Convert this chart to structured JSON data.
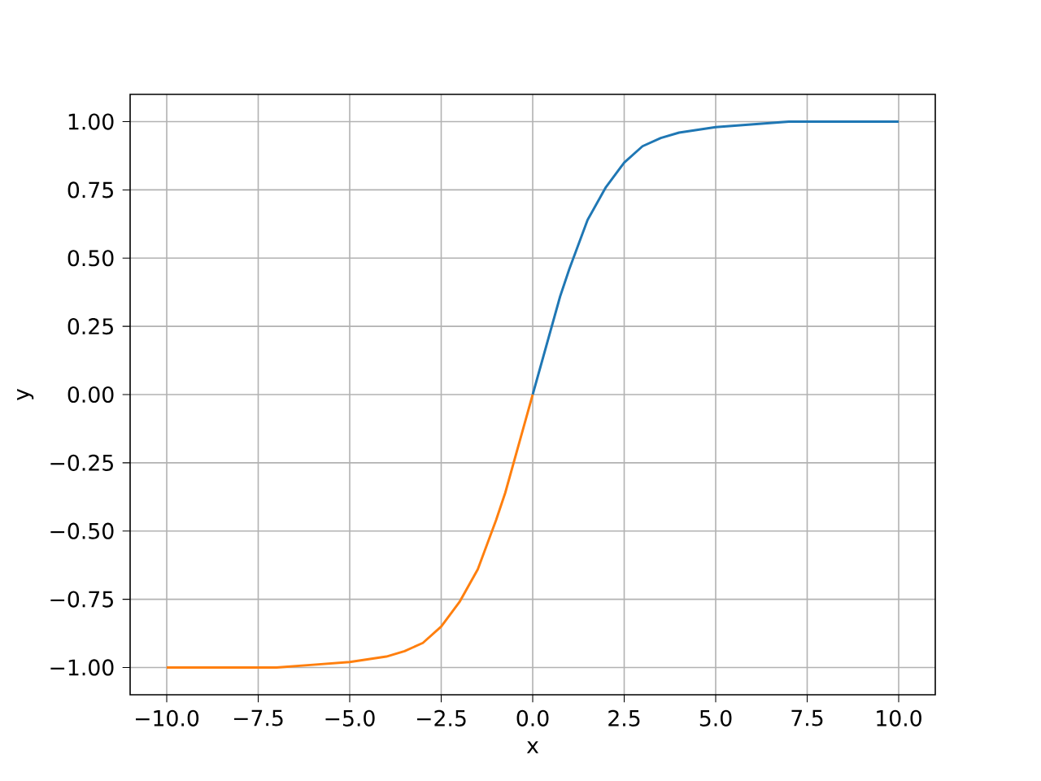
{
  "chart_data": {
    "type": "line",
    "xlabel": "x",
    "ylabel": "y",
    "series": [
      {
        "color": "#1f77b4",
        "x": [
          0,
          0.25,
          0.5,
          0.75,
          1,
          1.5,
          2,
          2.5,
          3,
          3.5,
          4,
          5,
          6,
          7,
          8,
          9,
          10
        ],
        "values": [
          0,
          0.12,
          0.24,
          0.36,
          0.46,
          0.64,
          0.76,
          0.85,
          0.91,
          0.94,
          0.96,
          0.98,
          0.99,
          1.0,
          1.0,
          1.0,
          1.0
        ]
      },
      {
        "color": "#ff7f0e",
        "x": [
          -10,
          -9,
          -8,
          -7,
          -6,
          -5,
          -4,
          -3.5,
          -3,
          -2.5,
          -2,
          -1.5,
          -1,
          -0.75,
          -0.5,
          -0.25,
          0
        ],
        "values": [
          -1.0,
          -1.0,
          -1.0,
          -1.0,
          -0.99,
          -0.98,
          -0.96,
          -0.94,
          -0.91,
          -0.85,
          -0.76,
          -0.64,
          -0.46,
          -0.36,
          -0.24,
          -0.12,
          0
        ]
      }
    ],
    "xlim": [
      -11,
      11
    ],
    "ylim": [
      -1.1,
      1.1
    ],
    "xticks": [
      {
        "value": -10,
        "label": "−10.0"
      },
      {
        "value": -7.5,
        "label": "−7.5"
      },
      {
        "value": -5,
        "label": "−5.0"
      },
      {
        "value": -2.5,
        "label": "−2.5"
      },
      {
        "value": 0,
        "label": "0.0"
      },
      {
        "value": 2.5,
        "label": "2.5"
      },
      {
        "value": 5,
        "label": "5.0"
      },
      {
        "value": 7.5,
        "label": "7.5"
      },
      {
        "value": 10,
        "label": "10.0"
      }
    ],
    "yticks": [
      {
        "value": -1,
        "label": "−1.00"
      },
      {
        "value": -0.75,
        "label": "−0.75"
      },
      {
        "value": -0.5,
        "label": "−0.50"
      },
      {
        "value": -0.25,
        "label": "−0.25"
      },
      {
        "value": 0,
        "label": "0.00"
      },
      {
        "value": 0.25,
        "label": "0.25"
      },
      {
        "value": 0.5,
        "label": "0.50"
      },
      {
        "value": 0.75,
        "label": "0.75"
      },
      {
        "value": 1,
        "label": "1.00"
      }
    ],
    "grid": true,
    "marker": "none",
    "line_style": "solid"
  }
}
